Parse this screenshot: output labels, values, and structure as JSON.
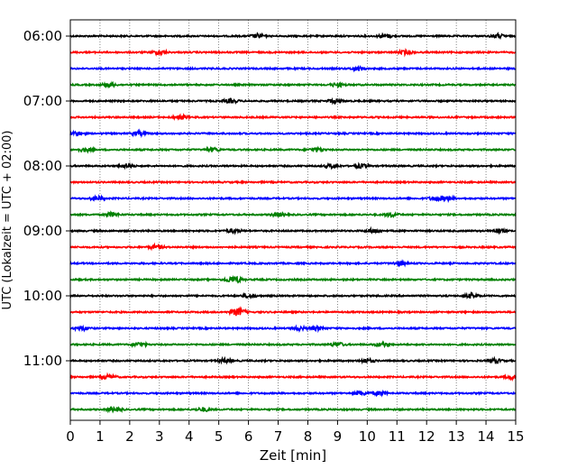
{
  "chart_data": {
    "type": "line",
    "title": "",
    "xlabel": "Zeit  [min]",
    "ylabel": "UTC (Lokalzeit = UTC + 02:00)",
    "xlim": [
      0,
      15
    ],
    "x_ticks": [
      "0",
      "1",
      "2",
      "3",
      "4",
      "5",
      "6",
      "7",
      "8",
      "9",
      "10",
      "11",
      "12",
      "13",
      "14",
      "15"
    ],
    "y_tick_labels": [
      "06:00",
      "07:00",
      "08:00",
      "09:00",
      "10:00",
      "11:00"
    ],
    "grid": "vertical dotted lines at each minute",
    "colors": [
      "#000000",
      "#ff0000",
      "#0000ff",
      "#008000"
    ],
    "traces": [
      {
        "start": "06:00",
        "color": "#000000",
        "events": [
          6.3,
          10.6,
          14.4
        ]
      },
      {
        "start": "06:15",
        "color": "#ff0000",
        "events": [
          3.0,
          11.3
        ]
      },
      {
        "start": "06:30",
        "color": "#0000ff",
        "events": [
          9.7
        ]
      },
      {
        "start": "06:45",
        "color": "#008000",
        "events": [
          1.3,
          9.0
        ]
      },
      {
        "start": "07:00",
        "color": "#000000",
        "events": [
          5.4,
          8.9
        ]
      },
      {
        "start": "07:15",
        "color": "#ff0000",
        "events": [
          3.7
        ]
      },
      {
        "start": "07:30",
        "color": "#0000ff",
        "events": [
          0.2,
          2.3
        ]
      },
      {
        "start": "07:45",
        "color": "#008000",
        "events": [
          0.5,
          4.8,
          8.3
        ]
      },
      {
        "start": "08:00",
        "color": "#000000",
        "events": [
          1.9,
          8.8,
          9.8
        ]
      },
      {
        "start": "08:15",
        "color": "#ff0000",
        "events": []
      },
      {
        "start": "08:30",
        "color": "#0000ff",
        "events": [
          0.9,
          12.3,
          12.7
        ]
      },
      {
        "start": "08:45",
        "color": "#008000",
        "events": [
          1.4,
          7.0,
          10.8
        ]
      },
      {
        "start": "09:00",
        "color": "#000000",
        "events": [
          5.5,
          10.2,
          14.4
        ]
      },
      {
        "start": "09:15",
        "color": "#ff0000",
        "events": [
          2.9
        ]
      },
      {
        "start": "09:30",
        "color": "#0000ff",
        "events": [
          11.1
        ]
      },
      {
        "start": "09:45",
        "color": "#008000",
        "events": [
          5.4,
          5.6
        ]
      },
      {
        "start": "10:00",
        "color": "#000000",
        "events": [
          6.0,
          13.5
        ]
      },
      {
        "start": "10:15",
        "color": "#ff0000",
        "events": [
          5.6,
          5.7
        ]
      },
      {
        "start": "10:30",
        "color": "#0000ff",
        "events": [
          0.4,
          7.7,
          8.3
        ]
      },
      {
        "start": "10:45",
        "color": "#008000",
        "events": [
          2.3,
          9.0,
          10.5
        ]
      },
      {
        "start": "11:00",
        "color": "#000000",
        "events": [
          5.2,
          10.0,
          14.3
        ]
      },
      {
        "start": "11:15",
        "color": "#ff0000",
        "events": [
          1.3,
          14.9
        ]
      },
      {
        "start": "11:30",
        "color": "#0000ff",
        "events": [
          9.8,
          10.4
        ]
      },
      {
        "start": "11:45",
        "color": "#008000",
        "events": [
          1.5,
          4.5
        ]
      }
    ]
  }
}
